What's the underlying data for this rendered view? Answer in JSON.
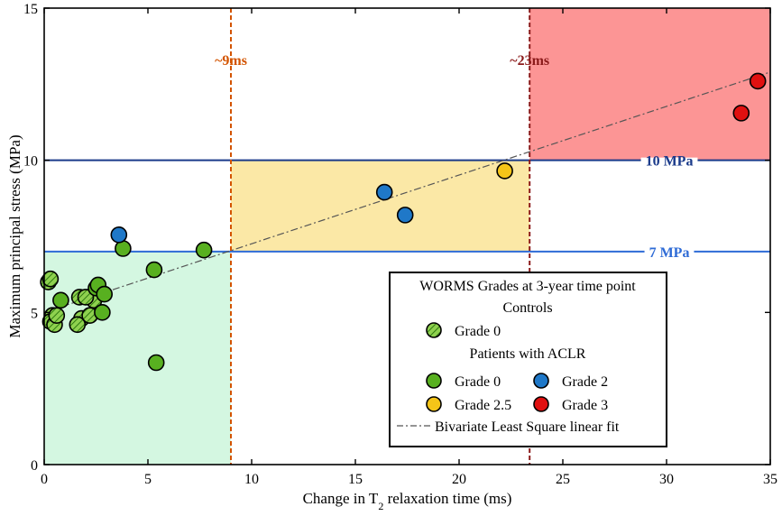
{
  "chart_data": {
    "type": "scatter",
    "xlabel_prefix": "Change in T",
    "xlabel_sub": "2",
    "xlabel_suffix": " relaxation time (ms)",
    "ylabel": "Maximum principal stress (MPa)",
    "xlim": [
      0,
      35
    ],
    "ylim": [
      0,
      15
    ],
    "xticks": [
      0,
      5,
      10,
      15,
      20,
      25,
      30,
      35
    ],
    "yticks": [
      0,
      5,
      10,
      15
    ],
    "regions": [
      {
        "x": [
          0,
          9
        ],
        "y": [
          0,
          7
        ],
        "color": "#d4f7e1"
      },
      {
        "x": [
          9,
          23.4
        ],
        "y": [
          7,
          10
        ],
        "color": "#fbe8a6"
      },
      {
        "x": [
          23.4,
          35
        ],
        "y": [
          10,
          15
        ],
        "color": "#fc9595"
      }
    ],
    "vlines": [
      {
        "x": 9,
        "label": "~9ms",
        "color": "#d35400"
      },
      {
        "x": 23.4,
        "label": "~23ms",
        "color": "#8b1a1a"
      }
    ],
    "hlines": [
      {
        "y": 10,
        "label": "10 MPa",
        "color": "#1a3a8a"
      },
      {
        "y": 7,
        "label": "7 MPa",
        "color": "#2e6bd6"
      }
    ],
    "fit_line": {
      "x": [
        0,
        35
      ],
      "y": [
        5.0,
        12.9
      ],
      "color": "#555555"
    },
    "series": [
      {
        "name": "Grade 0",
        "group": "controls",
        "color": "#66bb22",
        "hatched": true,
        "x": [
          0.2,
          0.3,
          0.4,
          0.3,
          0.5,
          0.6,
          1.7,
          1.8,
          2.2,
          2.4,
          1.6,
          2.0
        ],
        "y": [
          6.0,
          6.1,
          4.9,
          4.7,
          4.6,
          4.9,
          5.5,
          4.8,
          4.9,
          5.4,
          4.6,
          5.5
        ]
      },
      {
        "name": "Grade 0",
        "group": "patients",
        "color": "#58b020",
        "hatched": false,
        "x": [
          0.8,
          2.5,
          2.6,
          2.8,
          2.9,
          3.8,
          5.3,
          5.4,
          7.7
        ],
        "y": [
          5.4,
          5.8,
          5.9,
          5.0,
          5.6,
          7.1,
          6.4,
          3.35,
          7.05
        ]
      },
      {
        "name": "Grade 2",
        "group": "patients",
        "color": "#1f78c8",
        "hatched": false,
        "x": [
          3.6,
          16.4,
          17.4
        ],
        "y": [
          7.55,
          8.95,
          8.2
        ]
      },
      {
        "name": "Grade 2.5",
        "group": "patients",
        "color": "#f5c518",
        "hatched": false,
        "x": [
          22.2
        ],
        "y": [
          9.65
        ]
      },
      {
        "name": "Grade 3",
        "group": "patients",
        "color": "#e01010",
        "hatched": false,
        "x": [
          33.6,
          34.4
        ],
        "y": [
          11.55,
          12.6
        ]
      }
    ],
    "legend": {
      "title": "WORMS Grades at 3-year time point",
      "controls_heading": "Controls",
      "controls_item": "Grade 0",
      "patients_heading": "Patients with ACLR",
      "items": [
        "Grade 0",
        "Grade 2",
        "Grade 2.5",
        "Grade 3"
      ],
      "fit_label": "Bivariate Least Square linear fit",
      "placement": "bottom-right"
    }
  }
}
